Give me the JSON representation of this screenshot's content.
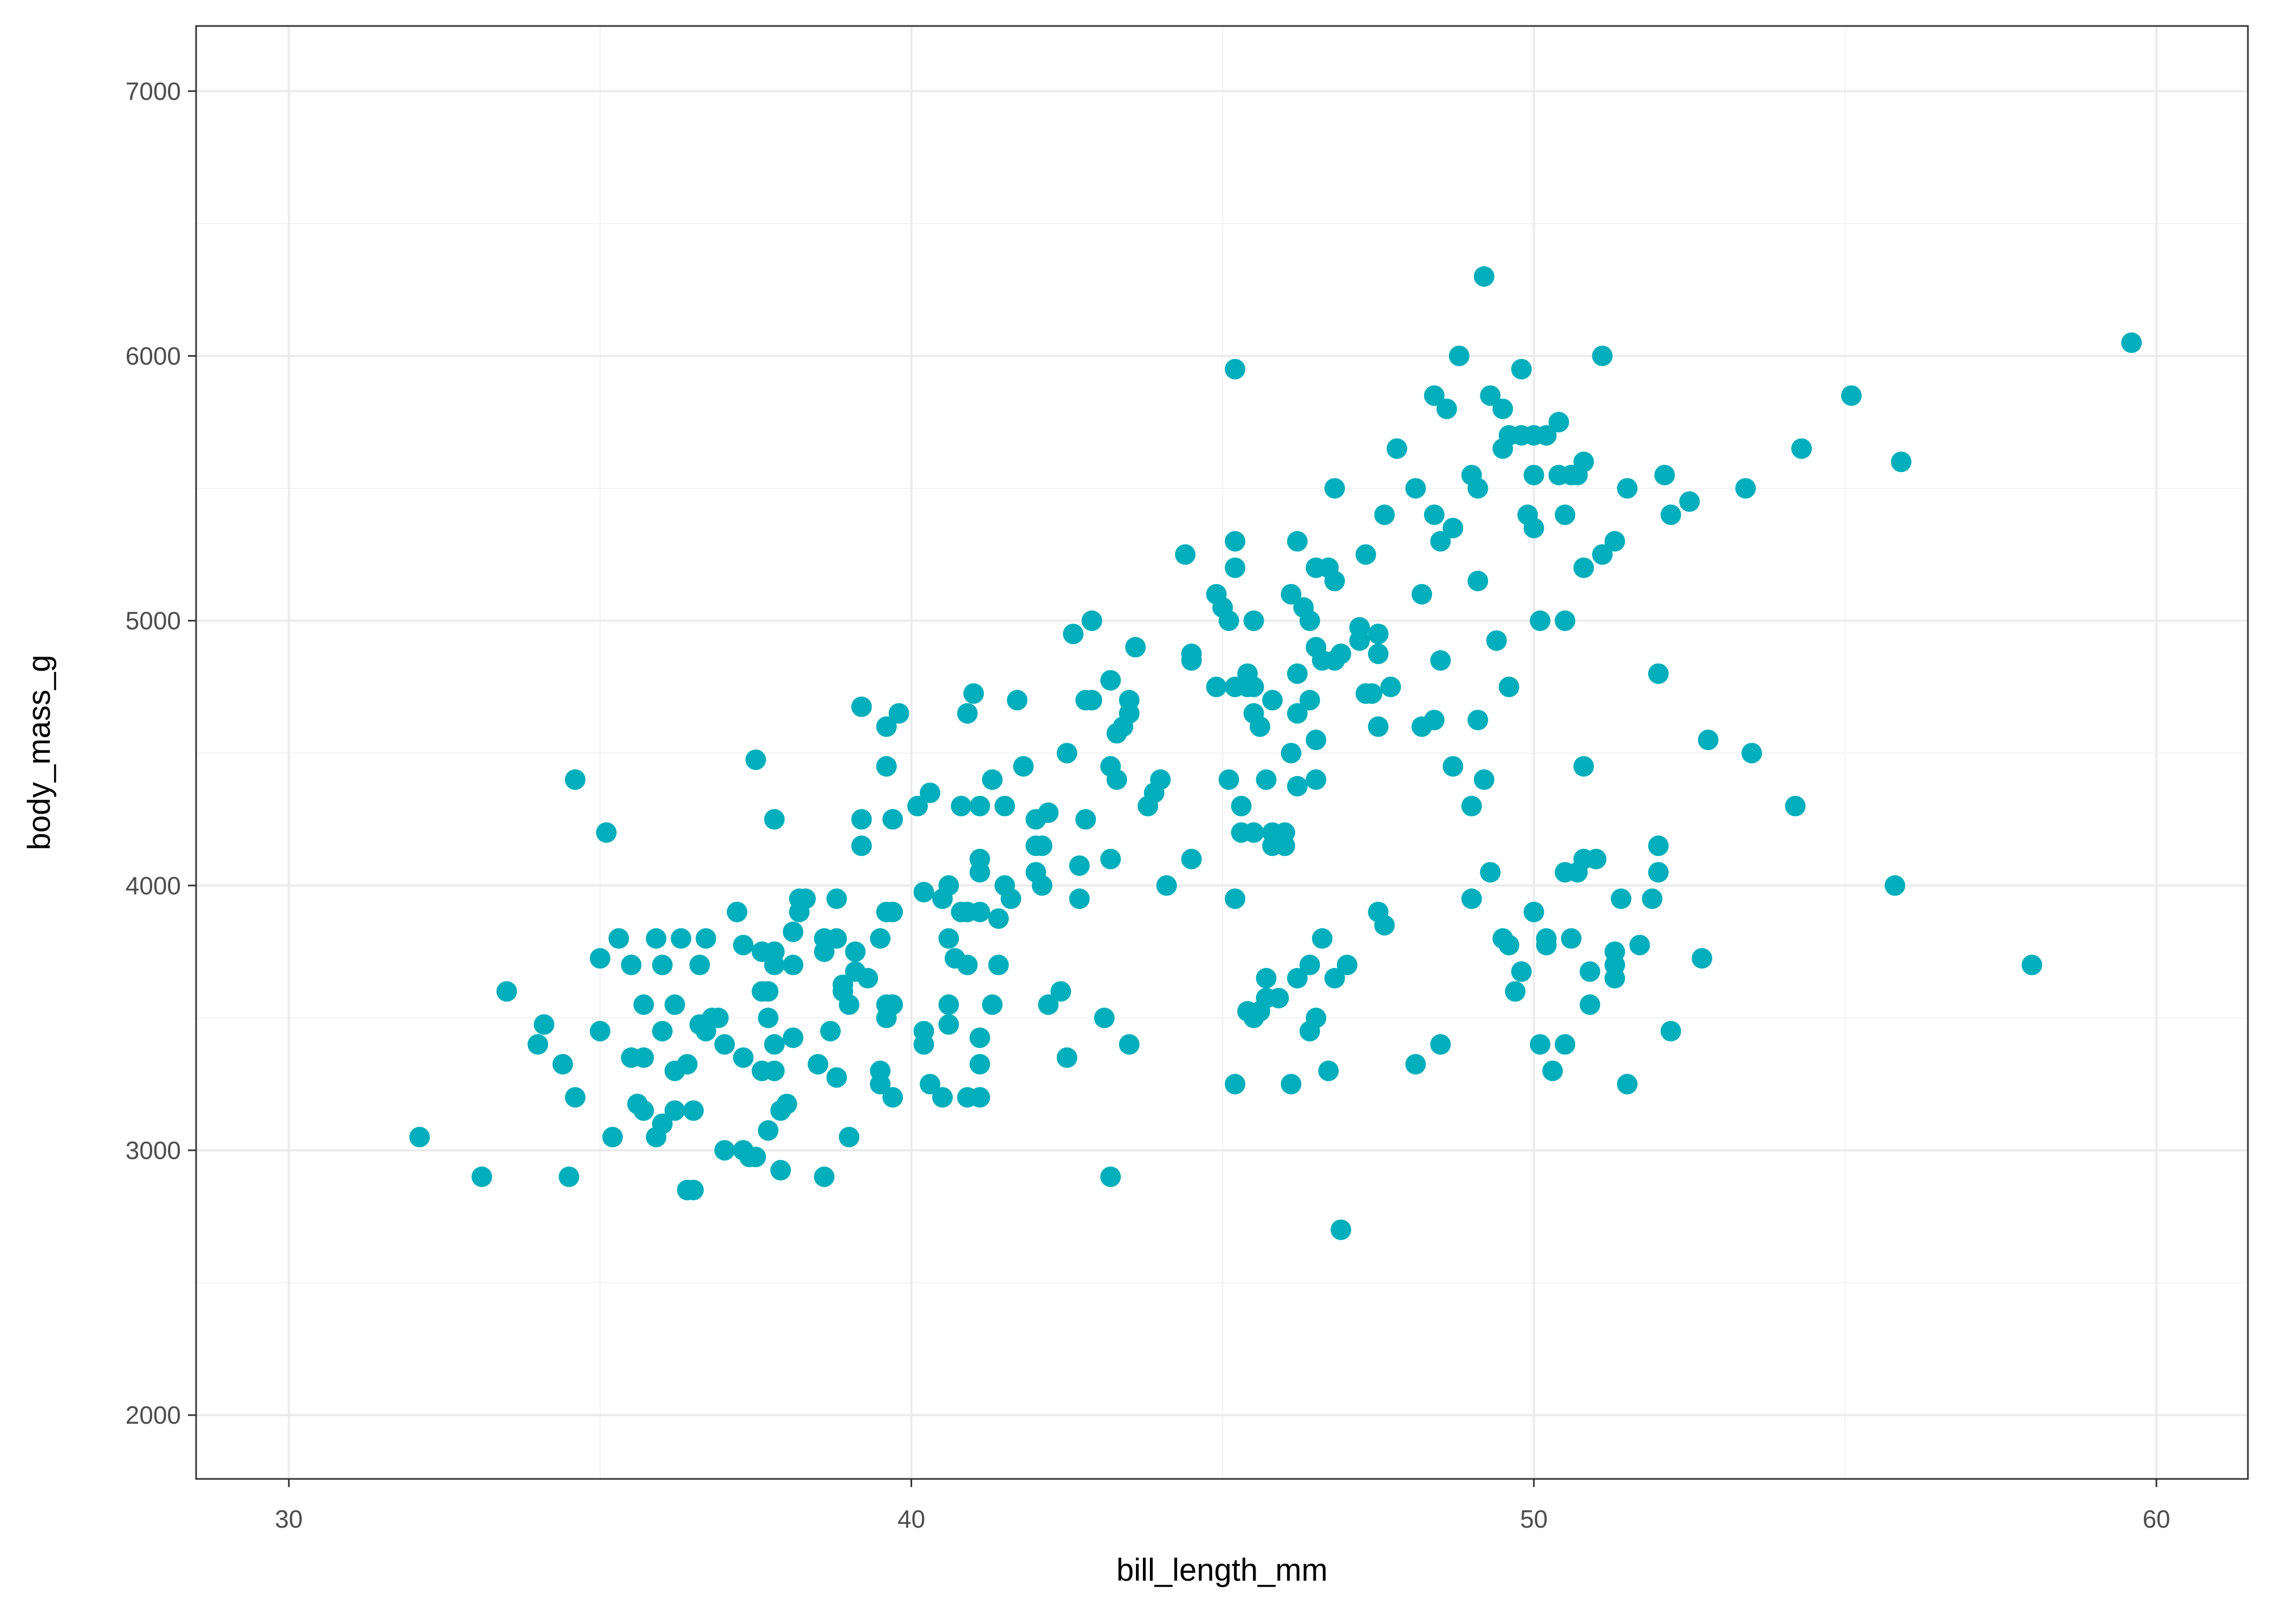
{
  "chart_data": {
    "type": "scatter",
    "x_label": "bill_length_mm",
    "y_label": "body_mass_g",
    "color": "#00afbb",
    "grid": true,
    "xlim": [
      28.51,
      61.47
    ],
    "ylim": [
      1759,
      7246
    ],
    "xticks": [
      30,
      40,
      50,
      60
    ],
    "yticks": [
      2000,
      3000,
      4000,
      5000,
      6000,
      7000
    ],
    "xminor": [
      35,
      45,
      55
    ],
    "yminor": [
      2500,
      3500,
      4500,
      5500,
      6500
    ],
    "x": [
      32.1,
      33.1,
      33.5,
      34.1,
      34.0,
      34.4,
      34.5,
      34.6,
      34.6,
      35.1,
      35.0,
      35.0,
      35.2,
      35.3,
      35.5,
      35.5,
      35.6,
      35.7,
      35.7,
      35.7,
      35.9,
      35.9,
      36.0,
      36.0,
      36.0,
      36.2,
      36.2,
      36.2,
      36.3,
      36.4,
      36.4,
      36.5,
      36.5,
      36.6,
      36.6,
      36.7,
      36.7,
      36.8,
      36.9,
      37.0,
      37.0,
      37.2,
      37.3,
      37.3,
      37.3,
      37.4,
      37.5,
      37.5,
      37.6,
      37.6,
      37.6,
      37.7,
      37.7,
      37.7,
      37.8,
      37.8,
      37.8,
      37.8,
      37.8,
      37.9,
      37.9,
      38.0,
      38.1,
      38.1,
      38.1,
      38.2,
      38.2,
      38.3,
      38.5,
      38.6,
      38.6,
      38.6,
      38.7,
      38.8,
      38.8,
      38.8,
      38.9,
      38.9,
      39.0,
      39.0,
      39.1,
      39.1,
      39.2,
      39.2,
      39.2,
      39.3,
      39.5,
      39.5,
      39.5,
      39.6,
      39.6,
      39.6,
      39.6,
      39.6,
      39.7,
      39.7,
      39.7,
      39.7,
      39.8,
      40.1,
      40.2,
      40.2,
      40.2,
      40.3,
      40.3,
      40.5,
      40.5,
      40.6,
      40.6,
      40.6,
      40.6,
      40.7,
      40.8,
      40.8,
      40.9,
      40.9,
      40.9,
      40.9,
      41.0,
      41.1,
      41.1,
      41.1,
      41.1,
      41.1,
      41.1,
      41.1,
      41.3,
      41.3,
      41.4,
      41.4,
      41.5,
      41.5,
      41.6,
      41.7,
      41.8,
      42.0,
      42.0,
      42.0,
      42.1,
      42.1,
      42.2,
      42.2,
      42.4,
      42.5,
      42.5,
      42.6,
      42.7,
      42.7,
      42.8,
      42.8,
      42.9,
      42.9,
      43.1,
      43.2,
      43.2,
      43.2,
      43.2,
      43.3,
      43.3,
      43.4,
      43.5,
      43.5,
      43.5,
      43.6,
      43.8,
      43.9,
      44.0,
      44.1,
      44.4,
      44.5,
      44.5,
      44.5,
      44.9,
      44.9,
      45.0,
      45.1,
      45.1,
      45.2,
      45.2,
      45.2,
      45.2,
      45.2,
      45.2,
      45.3,
      45.3,
      45.4,
      45.4,
      45.4,
      45.5,
      45.5,
      45.5,
      45.5,
      45.5,
      45.6,
      45.6,
      45.7,
      45.7,
      45.7,
      45.8,
      45.8,
      45.8,
      45.9,
      46.0,
      46.0,
      46.1,
      46.1,
      46.1,
      46.2,
      46.2,
      46.2,
      46.2,
      46.2,
      46.3,
      46.4,
      46.4,
      46.4,
      46.4,
      46.5,
      46.5,
      46.5,
      46.5,
      46.5,
      46.6,
      46.6,
      46.7,
      46.7,
      46.8,
      46.8,
      46.8,
      46.8,
      46.9,
      46.9,
      47.0,
      47.2,
      47.2,
      47.3,
      47.3,
      47.4,
      47.5,
      47.5,
      47.5,
      47.5,
      47.6,
      47.6,
      47.7,
      47.8,
      48.1,
      48.1,
      48.2,
      48.2,
      48.4,
      48.4,
      48.4,
      48.5,
      48.5,
      48.5,
      48.6,
      48.7,
      48.7,
      48.8,
      49.0,
      49.0,
      49.0,
      49.1,
      49.1,
      49.1,
      49.2,
      49.2,
      49.3,
      49.3,
      49.4,
      49.5,
      49.5,
      49.5,
      49.6,
      49.6,
      49.6,
      49.7,
      49.8,
      49.8,
      49.8,
      49.9,
      50.0,
      50.0,
      50.0,
      50.0,
      50.1,
      50.1,
      50.2,
      50.2,
      50.2,
      50.3,
      50.4,
      50.4,
      50.5,
      50.5,
      50.5,
      50.5,
      50.6,
      50.6,
      50.7,
      50.7,
      50.8,
      50.8,
      50.8,
      50.8,
      50.9,
      50.9,
      51.0,
      51.1,
      51.1,
      51.3,
      51.3,
      51.3,
      51.3,
      51.4,
      51.5,
      51.5,
      51.7,
      51.9,
      52.0,
      52.0,
      52.0,
      52.1,
      52.2,
      52.2,
      52.5,
      52.7,
      52.8,
      53.4,
      53.5,
      54.2,
      54.3,
      55.1,
      55.8,
      55.9,
      58.0,
      59.6
    ],
    "values": [
      3050,
      2900,
      3600,
      3475,
      3400,
      3325,
      2900,
      3200,
      4400,
      4200,
      3725,
      3450,
      3050,
      3800,
      3700,
      3350,
      3175,
      3550,
      3350,
      3150,
      3800,
      3050,
      3450,
      3100,
      3700,
      3550,
      3300,
      3150,
      3800,
      3325,
      2850,
      2850,
      3150,
      3700,
      3475,
      3800,
      3450,
      3500,
      3500,
      3400,
      3000,
      3900,
      3350,
      3000,
      3775,
      2975,
      4475,
      2975,
      3750,
      3600,
      3300,
      3600,
      3500,
      3075,
      4250,
      3750,
      3700,
      3400,
      3300,
      3150,
      2925,
      3175,
      3700,
      3425,
      3825,
      3900,
      3950,
      3950,
      3325,
      3750,
      3800,
      2900,
      3450,
      3950,
      3800,
      3275,
      3600,
      3625,
      3550,
      3050,
      3750,
      3675,
      4675,
      4250,
      4150,
      3650,
      3300,
      3250,
      3800,
      3900,
      3500,
      3550,
      4600,
      4450,
      3900,
      4250,
      3550,
      3200,
      4650,
      4300,
      3975,
      3450,
      3400,
      4350,
      3250,
      3200,
      3950,
      4000,
      3800,
      3550,
      3475,
      3725,
      4300,
      3900,
      4650,
      3900,
      3700,
      3200,
      4725,
      4300,
      4100,
      4050,
      3900,
      3425,
      3325,
      3200,
      4400,
      3550,
      3875,
      3700,
      4300,
      4000,
      3950,
      4700,
      4450,
      4250,
      4150,
      4050,
      4000,
      4150,
      3550,
      4275,
      3600,
      4500,
      3350,
      4950,
      4075,
      3950,
      4700,
      4250,
      5000,
      4700,
      3500,
      4775,
      4450,
      4100,
      2900,
      4575,
      4400,
      4600,
      4650,
      4700,
      3400,
      4900,
      4300,
      4350,
      4400,
      4000,
      5250,
      4875,
      4850,
      4100,
      5100,
      4750,
      5050,
      4400,
      5000,
      5950,
      5300,
      5200,
      4750,
      3950,
      3250,
      4300,
      4200,
      4800,
      4750,
      3525,
      4750,
      4650,
      5000,
      4200,
      3500,
      4600,
      3525,
      4400,
      3650,
      3575,
      4200,
      4150,
      4700,
      3575,
      4200,
      4150,
      5100,
      4500,
      3250,
      5300,
      4800,
      4650,
      4375,
      3650,
      5050,
      5000,
      4700,
      3700,
      3450,
      5200,
      4900,
      4550,
      4400,
      3500,
      3800,
      4850,
      5200,
      3300,
      5500,
      5150,
      4850,
      3650,
      2700,
      4875,
      3700,
      4975,
      4925,
      5250,
      4725,
      4725,
      4950,
      4875,
      4600,
      3900,
      5400,
      3850,
      4750,
      5650,
      5500,
      3325,
      5100,
      4600,
      5850,
      5400,
      4625,
      5300,
      4850,
      3400,
      5800,
      5350,
      4450,
      6000,
      5550,
      4300,
      3950,
      5500,
      5150,
      4625,
      6300,
      4400,
      5850,
      4050,
      4925,
      5800,
      5650,
      3800,
      5700,
      4750,
      3775,
      3600,
      5950,
      5700,
      3675,
      5400,
      5700,
      5550,
      5350,
      3900,
      5000,
      3400,
      5700,
      3800,
      3775,
      3300,
      5750,
      5550,
      5400,
      5000,
      4050,
      3400,
      5550,
      3800,
      5550,
      4050,
      4100,
      5600,
      5200,
      4450,
      3675,
      3550,
      4100,
      6000,
      5250,
      5300,
      3750,
      3700,
      3650,
      3950,
      5500,
      3250,
      3775,
      3950,
      4800,
      4150,
      4050,
      5550,
      5400,
      3450,
      5450,
      3725,
      4550,
      5500,
      4500,
      4300,
      5650,
      5850,
      4000,
      5600,
      3700,
      6050
    ]
  }
}
